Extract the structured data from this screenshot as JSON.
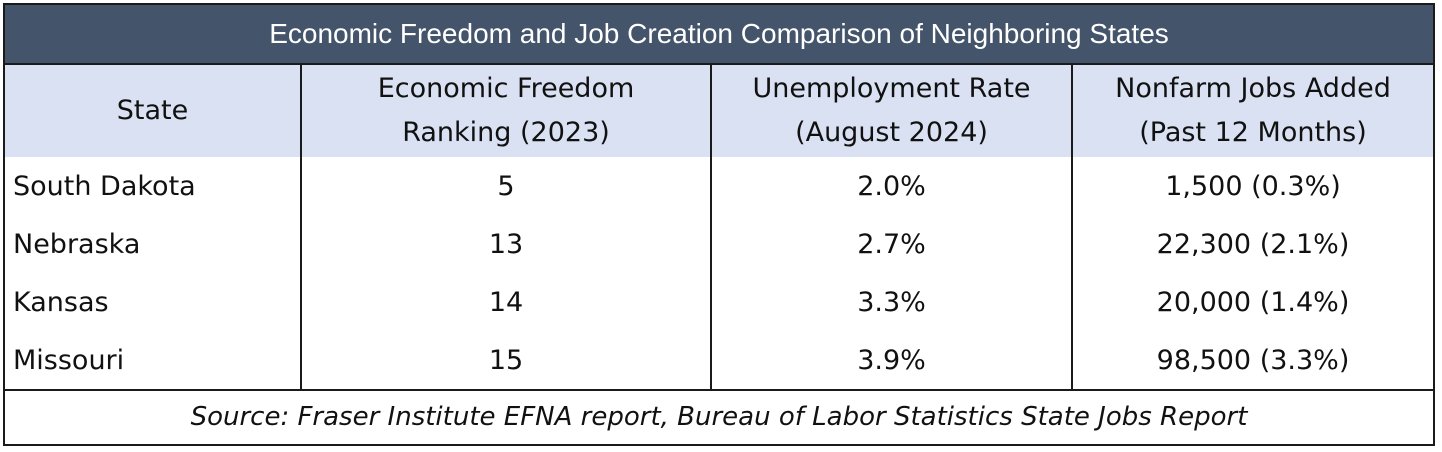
{
  "chart_data": {
    "type": "table",
    "title": "Economic Freedom and Job Creation Comparison of Neighboring States",
    "columns": [
      {
        "line1": "State",
        "line2": ""
      },
      {
        "line1": "Economic Freedom",
        "line2": "Ranking (2023)"
      },
      {
        "line1": "Unemployment Rate",
        "line2": "(August 2024)"
      },
      {
        "line1": "Nonfarm Jobs Added",
        "line2": "(Past 12 Months)"
      }
    ],
    "rows": [
      {
        "state": "South Dakota",
        "ranking": "5",
        "unemployment": "2.0%",
        "jobs_added": "1,500 (0.3%)"
      },
      {
        "state": "Nebraska",
        "ranking": "13",
        "unemployment": "2.7%",
        "jobs_added": "22,300 (2.1%)"
      },
      {
        "state": "Kansas",
        "ranking": "14",
        "unemployment": "3.3%",
        "jobs_added": "20,000 (1.4%)"
      },
      {
        "state": "Missouri",
        "ranking": "15",
        "unemployment": "3.9%",
        "jobs_added": "98,500 (3.3%)"
      }
    ],
    "source": "Source: Fraser Institute EFNA report, Bureau of Labor Statistics State Jobs Report"
  },
  "colors": {
    "title_background": "#44546a",
    "header_background": "#d9e1f2",
    "border": "#1a1a1a"
  }
}
